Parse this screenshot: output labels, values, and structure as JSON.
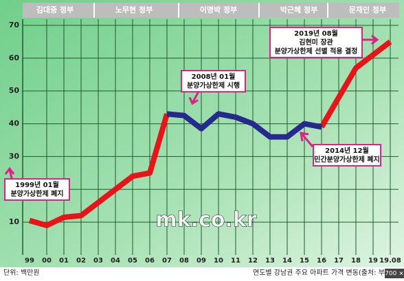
{
  "chart_data": {
    "type": "line",
    "eras": [
      "김대중 정부",
      "노무현 정부",
      "이명박 정부",
      "박근혜 정부",
      "문재인 정부"
    ],
    "categories": [
      "99",
      "00",
      "01",
      "02",
      "03",
      "04",
      "05",
      "06",
      "07",
      "08",
      "09",
      "10",
      "11",
      "12",
      "13",
      "14",
      "15",
      "16",
      "17",
      "18",
      "19",
      "19.08"
    ],
    "series": [
      {
        "color": "#e8141a",
        "values": [
          10.5,
          9,
          11.5,
          12,
          16,
          20,
          24,
          25,
          43,
          null,
          null,
          null,
          null,
          null,
          null,
          null,
          null,
          39,
          48,
          57,
          61,
          65
        ]
      },
      {
        "color": "#262a8c",
        "values": [
          null,
          null,
          null,
          null,
          null,
          null,
          null,
          null,
          43,
          42.5,
          38.5,
          43,
          42,
          40,
          36,
          36,
          40,
          39,
          null,
          null,
          null,
          null
        ]
      }
    ],
    "ylim": [
      0,
      70
    ],
    "yticks": [
      10,
      20,
      30,
      40,
      50,
      60,
      70
    ],
    "grid": true,
    "annotations": [
      {
        "lines": [
          "1999년 01월",
          "분양가상한제 폐지"
        ]
      },
      {
        "lines": [
          "2008년 01월",
          "분양가상한제 시행"
        ]
      },
      {
        "lines": [
          "2014년 12월",
          "민간분양가상한제 폐지"
        ]
      },
      {
        "lines": [
          "2019년 08월",
          "김현미 장관",
          "분양가상한제 선별 적용 결정"
        ]
      }
    ],
    "unit": "단위: 백만원",
    "source": "연도별 강남권 주요 아파트 가격 변동(출처: 부동산",
    "watermark": "mk.co.kr",
    "badge": "700 ×"
  }
}
